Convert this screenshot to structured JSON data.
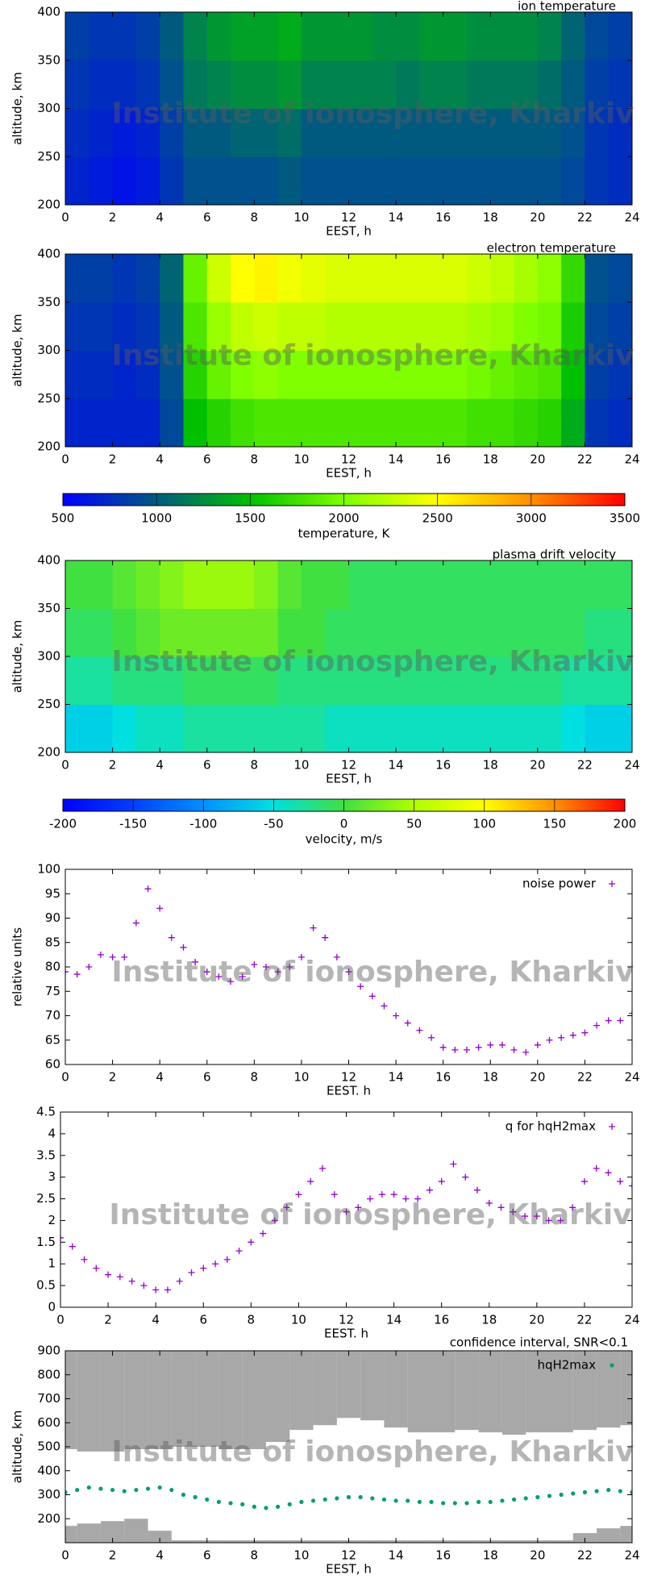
{
  "watermark": "Institute of ionosphere, Kharkiv",
  "chart_data": [
    {
      "type": "heatmap",
      "title": "ion temperature",
      "xlabel": "EEST, h",
      "ylabel": "altitude, km",
      "xlim": [
        0,
        24
      ],
      "xticks": [
        0,
        2,
        4,
        6,
        8,
        10,
        12,
        14,
        16,
        18,
        20,
        22,
        24
      ],
      "ylim": [
        200,
        400
      ],
      "yticks": [
        200,
        250,
        300,
        350,
        400
      ],
      "x": [
        0,
        1,
        2,
        3,
        4,
        5,
        6,
        7,
        8,
        9,
        10,
        11,
        12,
        13,
        14,
        15,
        16,
        17,
        18,
        19,
        20,
        21,
        22,
        23,
        24
      ],
      "y": [
        200,
        250,
        300,
        350,
        400
      ],
      "zlim": [
        500,
        3500
      ],
      "colormap": [
        "#0000ff",
        "#005a80",
        "#00c000",
        "#80ff00",
        "#ffff00",
        "#ff9000",
        "#ff0000"
      ],
      "z": [
        [
          700,
          650,
          600,
          650,
          800,
          950,
          950,
          950,
          950,
          1000,
          950,
          950,
          950,
          950,
          950,
          950,
          950,
          950,
          950,
          950,
          950,
          900,
          800,
          750
        ],
        [
          750,
          700,
          650,
          700,
          850,
          1000,
          1000,
          1050,
          1050,
          1100,
          1000,
          1000,
          1000,
          1000,
          1000,
          1000,
          1000,
          1000,
          1000,
          1000,
          1000,
          950,
          800,
          750
        ],
        [
          800,
          750,
          750,
          800,
          950,
          1150,
          1200,
          1250,
          1250,
          1300,
          1200,
          1200,
          1200,
          1200,
          1150,
          1200,
          1200,
          1150,
          1150,
          1150,
          1100,
          1000,
          850,
          800
        ],
        [
          850,
          800,
          800,
          850,
          1000,
          1200,
          1300,
          1350,
          1350,
          1400,
          1300,
          1300,
          1300,
          1250,
          1250,
          1300,
          1300,
          1250,
          1250,
          1250,
          1200,
          1050,
          900,
          850
        ]
      ]
    },
    {
      "type": "heatmap",
      "title": "electron temperature",
      "xlabel": "EEST, h",
      "ylabel": "altitude, km",
      "xlim": [
        0,
        24
      ],
      "xticks": [
        0,
        2,
        4,
        6,
        8,
        10,
        12,
        14,
        16,
        18,
        20,
        22,
        24
      ],
      "ylim": [
        200,
        400
      ],
      "yticks": [
        200,
        250,
        300,
        350,
        400
      ],
      "x": [
        0,
        1,
        2,
        3,
        4,
        5,
        6,
        7,
        8,
        9,
        10,
        11,
        12,
        13,
        14,
        15,
        16,
        17,
        18,
        19,
        20,
        21,
        22,
        23,
        24
      ],
      "y": [
        200,
        250,
        300,
        350,
        400
      ],
      "zlim": [
        500,
        3500
      ],
      "colormap": [
        "#0000ff",
        "#005a80",
        "#00c000",
        "#80ff00",
        "#ffff00",
        "#ff9000",
        "#ff0000"
      ],
      "z": [
        [
          700,
          700,
          700,
          700,
          900,
          1500,
          1650,
          1750,
          1800,
          1800,
          1800,
          1800,
          1800,
          1800,
          1800,
          1800,
          1800,
          1750,
          1750,
          1700,
          1650,
          1400,
          800,
          750
        ],
        [
          750,
          750,
          700,
          750,
          950,
          1650,
          1900,
          2000,
          2050,
          2000,
          2000,
          2000,
          2000,
          2000,
          2000,
          2000,
          2000,
          1950,
          1900,
          1850,
          1800,
          1500,
          850,
          800
        ],
        [
          800,
          800,
          750,
          800,
          1000,
          1800,
          2100,
          2250,
          2300,
          2250,
          2250,
          2200,
          2200,
          2200,
          2200,
          2200,
          2200,
          2150,
          2100,
          2000,
          1950,
          1600,
          900,
          850
        ],
        [
          850,
          850,
          800,
          850,
          1050,
          1900,
          2300,
          2500,
          2550,
          2450,
          2400,
          2350,
          2350,
          2350,
          2350,
          2350,
          2350,
          2300,
          2250,
          2150,
          2050,
          1700,
          950,
          900
        ]
      ],
      "colorbar": {
        "label": "temperature, K",
        "ticks": [
          500,
          1000,
          1500,
          2000,
          2500,
          3000,
          3500
        ]
      }
    },
    {
      "type": "heatmap",
      "title": "plasma drift velocity",
      "xlabel": "EEST, h",
      "ylabel": "altitude, km",
      "xlim": [
        0,
        24
      ],
      "xticks": [
        0,
        2,
        4,
        6,
        8,
        10,
        12,
        14,
        16,
        18,
        20,
        22,
        24
      ],
      "ylim": [
        200,
        400
      ],
      "yticks": [
        200,
        250,
        300,
        350,
        400
      ],
      "x": [
        0,
        1,
        2,
        3,
        4,
        5,
        6,
        7,
        8,
        9,
        10,
        11,
        12,
        13,
        14,
        15,
        16,
        17,
        18,
        19,
        20,
        21,
        22,
        23,
        24
      ],
      "y": [
        200,
        250,
        300,
        350,
        400
      ],
      "zlim": [
        -200,
        200
      ],
      "colormap": [
        "#0000ff",
        "#0040ff",
        "#0090ff",
        "#00e0e0",
        "#40e040",
        "#b0ff00",
        "#ffff00",
        "#ff9000",
        "#ff0000"
      ],
      "z": [
        [
          -60,
          -60,
          -50,
          -40,
          -40,
          -30,
          -30,
          -30,
          -30,
          -30,
          -30,
          -40,
          -40,
          -40,
          -40,
          -40,
          -40,
          -40,
          -40,
          -40,
          -40,
          -50,
          -60,
          -60
        ],
        [
          -30,
          -30,
          -20,
          -20,
          -20,
          -10,
          -10,
          -10,
          -10,
          -20,
          -20,
          -20,
          -20,
          -20,
          -20,
          -20,
          -20,
          -20,
          -20,
          -20,
          -20,
          -30,
          -30,
          -30
        ],
        [
          -10,
          -10,
          0,
          10,
          20,
          20,
          20,
          20,
          20,
          0,
          0,
          -10,
          -10,
          -10,
          -10,
          -10,
          -10,
          -10,
          -10,
          -10,
          -10,
          -10,
          -20,
          -20
        ],
        [
          0,
          0,
          10,
          20,
          30,
          40,
          40,
          40,
          30,
          10,
          0,
          0,
          -10,
          -10,
          -10,
          -10,
          -10,
          -10,
          -10,
          -10,
          -10,
          -10,
          -10,
          -10
        ]
      ],
      "colorbar": {
        "label": "velocity, m/s",
        "ticks": [
          -200,
          -150,
          -100,
          -50,
          0,
          50,
          100,
          150,
          200
        ]
      }
    },
    {
      "type": "scatter",
      "xlabel": "EEST. h",
      "ylabel": "relative units",
      "legend": "top-right",
      "xlim": [
        0,
        24
      ],
      "xticks": [
        0,
        2,
        4,
        6,
        8,
        10,
        12,
        14,
        16,
        18,
        20,
        22,
        24
      ],
      "ylim": [
        60,
        100
      ],
      "yticks": [
        60,
        65,
        70,
        75,
        80,
        85,
        90,
        95,
        100
      ],
      "series": [
        {
          "name": "noise power",
          "color": "#9400d3",
          "marker": "+",
          "x": [
            0,
            0.5,
            1,
            1.5,
            2,
            2.5,
            3,
            3.5,
            4,
            4.5,
            5,
            5.5,
            6,
            6.5,
            7,
            7.5,
            8,
            8.5,
            9,
            9.5,
            10,
            10.5,
            11,
            11.5,
            12,
            12.5,
            13,
            13.5,
            14,
            14.5,
            15,
            15.5,
            16,
            16.5,
            17,
            17.5,
            18,
            18.5,
            19,
            19.5,
            20,
            20.5,
            21,
            21.5,
            22,
            22.5,
            23,
            23.5,
            24
          ],
          "values": [
            79,
            78.5,
            80,
            82.5,
            82,
            82,
            89,
            96,
            92,
            86,
            84,
            81,
            79,
            78,
            77,
            78,
            80.5,
            80,
            79,
            80,
            82,
            88,
            86,
            82,
            79,
            76,
            74,
            72,
            70,
            68.5,
            67,
            65.5,
            63.5,
            63,
            63,
            63.5,
            64,
            64,
            63,
            62.5,
            64,
            65,
            65.5,
            66,
            66.5,
            68,
            69,
            69,
            70.5
          ]
        }
      ]
    },
    {
      "type": "scatter",
      "xlabel": "EEST. h",
      "legend": "top-right",
      "xlim": [
        0,
        24
      ],
      "xticks": [
        0,
        2,
        4,
        6,
        8,
        10,
        12,
        14,
        16,
        18,
        20,
        22,
        24
      ],
      "ylim": [
        0,
        4.5
      ],
      "yticks": [
        0,
        0.5,
        1,
        1.5,
        2,
        2.5,
        3,
        3.5,
        4,
        4.5
      ],
      "series": [
        {
          "name": "q for hqH2max",
          "color": "#9400d3",
          "marker": "+",
          "x": [
            0,
            0.5,
            1,
            1.5,
            2,
            2.5,
            3,
            3.5,
            4,
            4.5,
            5,
            5.5,
            6,
            6.5,
            7,
            7.5,
            8,
            8.5,
            9,
            9.5,
            10,
            10.5,
            11,
            11.5,
            12,
            12.5,
            13,
            13.5,
            14,
            14.5,
            15,
            15.5,
            16,
            16.5,
            17,
            17.5,
            18,
            18.5,
            19,
            19.5,
            20,
            20.5,
            21,
            21.5,
            22,
            22.5,
            23,
            23.5,
            24
          ],
          "values": [
            1.6,
            1.4,
            1.1,
            0.9,
            0.75,
            0.7,
            0.6,
            0.5,
            0.4,
            0.4,
            0.6,
            0.8,
            0.9,
            1.0,
            1.1,
            1.3,
            1.5,
            1.7,
            2.0,
            2.3,
            2.6,
            2.9,
            3.2,
            2.6,
            2.2,
            2.3,
            2.5,
            2.6,
            2.6,
            2.5,
            2.5,
            2.7,
            2.9,
            3.3,
            3.0,
            2.7,
            2.4,
            2.3,
            2.2,
            2.1,
            2.1,
            2.0,
            2.0,
            2.3,
            2.9,
            3.2,
            3.1,
            2.9,
            2.8
          ]
        }
      ]
    },
    {
      "type": "scatter",
      "xlabel": "EEST, h",
      "ylabel": "altitude, km",
      "legend": "top-right",
      "xlim": [
        0,
        24
      ],
      "xticks": [
        0,
        2,
        4,
        6,
        8,
        10,
        12,
        14,
        16,
        18,
        20,
        22,
        24
      ],
      "ylim": [
        100,
        900
      ],
      "yticks": [
        200,
        300,
        400,
        500,
        600,
        700,
        800,
        900
      ],
      "series": [
        {
          "name": "confidence interval, SNR<0.1",
          "color": "#999999",
          "marker": "band",
          "x": [
            0,
            1,
            2,
            3,
            4,
            5,
            6,
            7,
            8,
            9,
            10,
            11,
            12,
            13,
            14,
            15,
            16,
            17,
            18,
            19,
            20,
            21,
            22,
            23,
            24
          ],
          "low": [
            170,
            180,
            190,
            200,
            150,
            110,
            110,
            110,
            110,
            110,
            110,
            110,
            110,
            110,
            110,
            110,
            110,
            110,
            110,
            110,
            110,
            110,
            140,
            160,
            170
          ],
          "high": [
            490,
            480,
            480,
            490,
            490,
            500,
            500,
            490,
            490,
            520,
            570,
            590,
            620,
            610,
            580,
            560,
            560,
            570,
            560,
            550,
            560,
            560,
            570,
            580,
            590
          ]
        },
        {
          "name": "hqH2max",
          "color": "#009e73",
          "marker": "dot",
          "x": [
            0,
            0.5,
            1,
            1.5,
            2,
            2.5,
            3,
            3.5,
            4,
            4.5,
            5,
            5.5,
            6,
            6.5,
            7,
            7.5,
            8,
            8.5,
            9,
            9.5,
            10,
            10.5,
            11,
            11.5,
            12,
            12.5,
            13,
            13.5,
            14,
            14.5,
            15,
            15.5,
            16,
            16.5,
            17,
            17.5,
            18,
            18.5,
            19,
            19.5,
            20,
            20.5,
            21,
            21.5,
            22,
            22.5,
            23,
            23.5,
            24
          ],
          "values": [
            310,
            320,
            330,
            325,
            320,
            315,
            320,
            325,
            330,
            320,
            300,
            290,
            280,
            270,
            265,
            260,
            250,
            245,
            250,
            260,
            270,
            275,
            280,
            285,
            290,
            290,
            285,
            280,
            275,
            275,
            270,
            270,
            265,
            265,
            265,
            270,
            270,
            275,
            280,
            285,
            290,
            295,
            300,
            305,
            310,
            315,
            320,
            315,
            310
          ]
        }
      ]
    }
  ]
}
